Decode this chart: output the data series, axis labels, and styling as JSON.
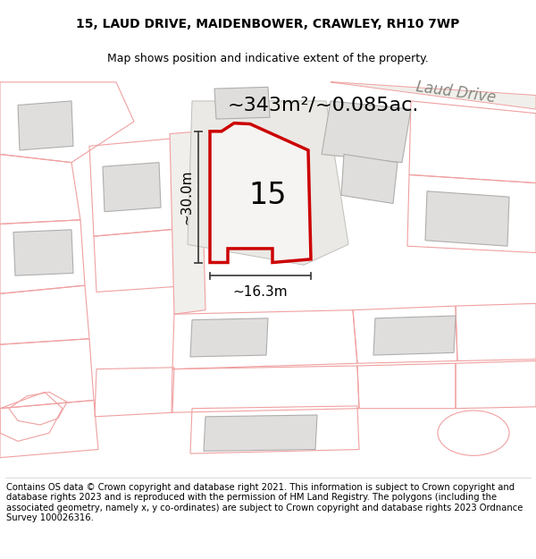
{
  "title_line1": "15, LAUD DRIVE, MAIDENBOWER, CRAWLEY, RH10 7WP",
  "title_line2": "Map shows position and indicative extent of the property.",
  "area_label": "~343m²/~0.085ac.",
  "house_number": "15",
  "dim_height": "~30.0m",
  "dim_width": "~16.3m",
  "road_label": "Laud Drive",
  "footer_text": "Contains OS data © Crown copyright and database right 2021. This information is subject to Crown copyright and database rights 2023 and is reproduced with the permission of HM Land Registry. The polygons (including the associated geometry, namely x, y co-ordinates) are subject to Crown copyright and database rights 2023 Ordnance Survey 100026316.",
  "map_bg": "#f8f7f5",
  "highlight_color": "#cc0000",
  "parcel_edge": "#f0a0a0",
  "building_fill": "#e0dedd",
  "building_edge": "#b0aeac",
  "subject_fill": "#f5f4f2",
  "title_fontsize": 10,
  "subtitle_fontsize": 9,
  "area_fontsize": 16,
  "number_fontsize": 24,
  "dim_fontsize": 11,
  "road_fontsize": 12,
  "footer_fontsize": 7.2
}
